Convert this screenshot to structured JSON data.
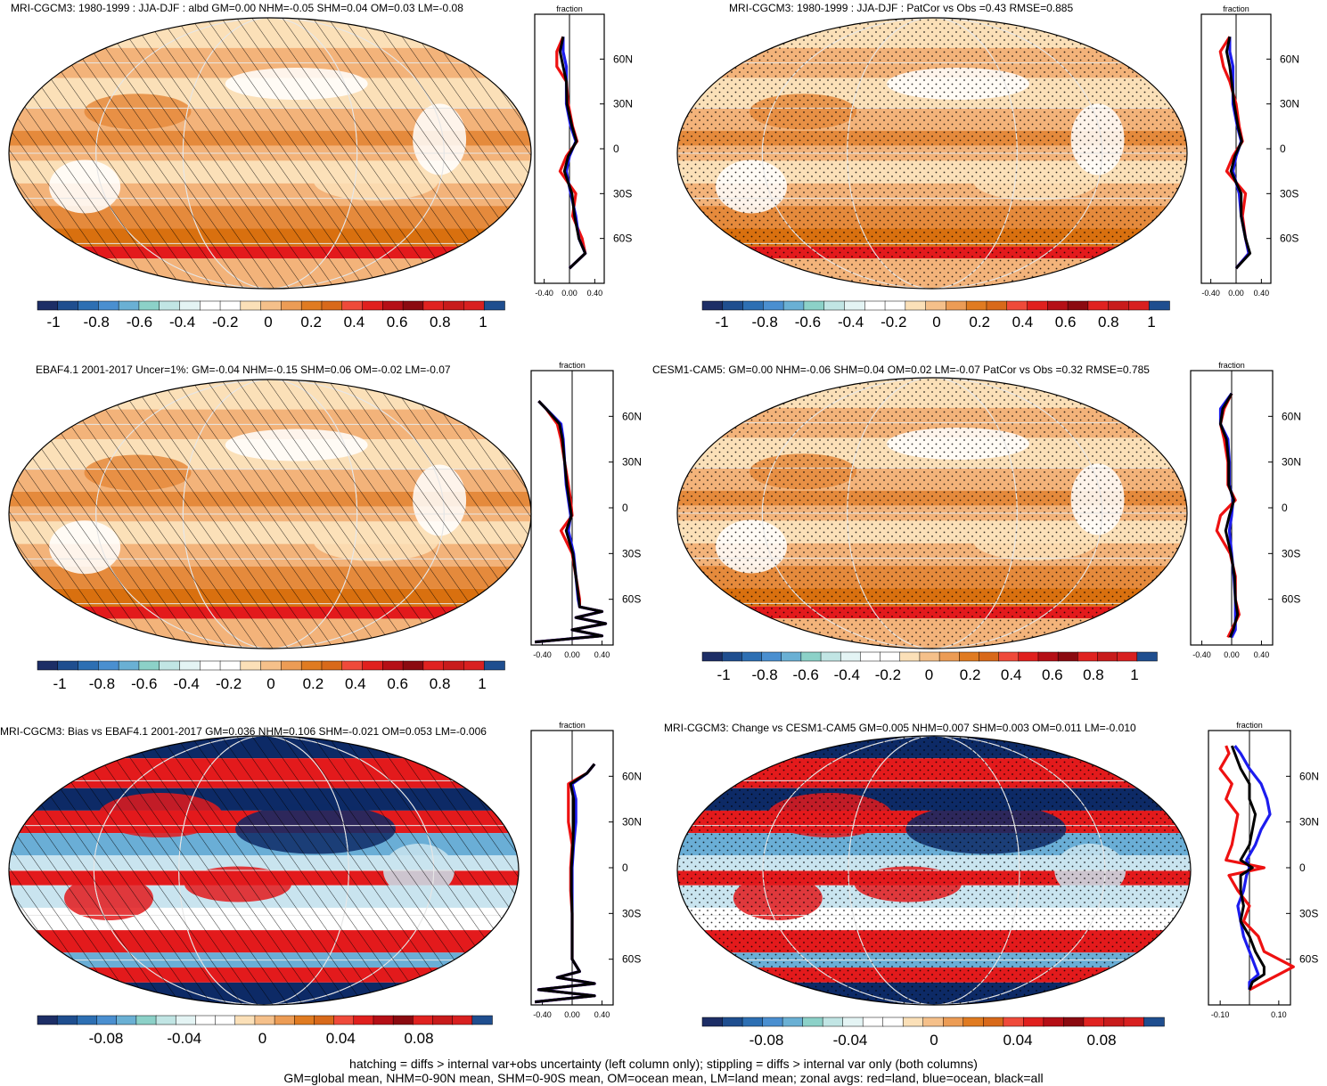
{
  "colors": {
    "dark_blue": "#0d2a66",
    "blue": "#1f5fa8",
    "light_blue": "#6aaed6",
    "pale_blue": "#c9e4ef",
    "white": "#ffffff",
    "pale_orange": "#fbe0b8",
    "light_orange": "#f3b37a",
    "orange": "#e58a3c",
    "dark_orange": "#d9700f",
    "red": "#e31a1c",
    "dark_red": "#b30000",
    "line_red": "#ee1111",
    "line_blue": "#1c1cee",
    "line_black": "#000000"
  },
  "colorbar": {
    "colors": [
      "#1d2e66",
      "#1f4e8f",
      "#2d6fb3",
      "#4a8fd0",
      "#6ab0d4",
      "#8cd1c8",
      "#c1e5e4",
      "#e4f4f4",
      "#ffffff",
      "#ffffff",
      "#fbe0b8",
      "#f5c08a",
      "#ec9c55",
      "#e07b21",
      "#d8691a",
      "#ef4a3a",
      "#e0201e",
      "#b50f16",
      "#8b0a10",
      "#e02220",
      "#c81b1b",
      "#d82020",
      "#1f4e8f"
    ],
    "labels_main": [
      "-1",
      "-0.8",
      "-0.6",
      "-0.4",
      "-0.2",
      "0",
      "0.2",
      "0.4",
      "0.6",
      "0.8",
      "1"
    ],
    "labels_diff": [
      "-0.08",
      "-0.04",
      "0",
      "0.04",
      "0.08"
    ]
  },
  "profile_axis": {
    "unit": "fraction",
    "lat_ticks": [
      "60N",
      "30N",
      "0",
      "30S",
      "60S"
    ],
    "x_ticks_main": [
      "-0.40",
      "0.00",
      "0.40"
    ],
    "x_ticks_change": [
      "-0.10",
      "0.10"
    ]
  },
  "panels": [
    {
      "id": "p1",
      "title": "MRI-CGCM3: 1980-1999 : JJA-DJF : albd GM=0.00 NHM=-0.05 SHM=0.04 OM=0.03 LM=-0.08",
      "overlay": "hatch",
      "style": "orange"
    },
    {
      "id": "p2",
      "title": "MRI-CGCM3: 1980-1999 : JJA-DJF : PatCor vs Obs =0.43 RMSE=0.885",
      "overlay": "stipple",
      "style": "orange"
    },
    {
      "id": "p3",
      "title": "EBAF4.1 2001-2017 Uncer=1%: GM=-0.04 NHM=-0.15 SHM=0.06 OM=-0.02 LM=-0.07",
      "overlay": "hatch",
      "style": "orange"
    },
    {
      "id": "p4",
      "title": "CESM1-CAM5: GM=0.00 NHM=-0.06 SHM=0.04 OM=0.02 LM=-0.07 PatCor vs Obs =0.32 RMSE=0.785",
      "overlay": "stipple",
      "style": "orange"
    },
    {
      "id": "p5",
      "title": "MRI-CGCM3: Bias vs EBAF4.1 2001-2017 GM=0.036 NHM=0.106 SHM=-0.021 OM=0.053 LM=-0.006",
      "overlay": "hatch",
      "style": "diff"
    },
    {
      "id": "p6",
      "title": "MRI-CGCM3: Change vs CESM1-CAM5 GM=0.005 NHM=0.007 SHM=0.003 OM=0.011 LM=-0.010",
      "overlay": "stipple",
      "style": "diff"
    }
  ],
  "chart_data": [
    {
      "type": "line",
      "title": "MRI-CGCM3: 1980-1999 : JJA-DJF : albd GM=0.00 NHM=-0.05 SHM=0.04 OM=0.03 LM=-0.08",
      "xlabel": "fraction",
      "xlim": [
        -0.55,
        0.55
      ],
      "ylim": [
        -90,
        90
      ],
      "lat": [
        -80,
        -70,
        -60,
        -45,
        -30,
        -15,
        -5,
        5,
        15,
        30,
        45,
        55,
        65,
        75
      ],
      "series": [
        {
          "name": "land",
          "color": "red",
          "values": [
            0.0,
            0.25,
            0.2,
            0.05,
            0.1,
            -0.15,
            -0.05,
            0.12,
            0.05,
            -0.02,
            -0.05,
            -0.2,
            -0.2,
            -0.1
          ]
        },
        {
          "name": "ocean",
          "color": "blue",
          "values": [
            0.0,
            0.25,
            0.15,
            0.1,
            0.02,
            -0.05,
            0.0,
            0.1,
            0.02,
            -0.05,
            -0.05,
            -0.05,
            -0.1,
            -0.1
          ]
        },
        {
          "name": "all",
          "color": "black",
          "values": [
            0.0,
            0.25,
            0.15,
            0.08,
            0.04,
            -0.08,
            -0.02,
            0.11,
            0.04,
            -0.04,
            -0.05,
            -0.1,
            -0.15,
            -0.1
          ]
        }
      ]
    },
    {
      "type": "line",
      "title": "MRI-CGCM3: 1980-1999 : JJA-DJF : PatCor vs Obs =0.43 RMSE=0.885",
      "xlabel": "fraction",
      "xlim": [
        -0.55,
        0.55
      ],
      "ylim": [
        -90,
        90
      ],
      "lat": [
        -80,
        -70,
        -60,
        -45,
        -30,
        -15,
        -5,
        5,
        15,
        30,
        45,
        55,
        65,
        75
      ],
      "series": [
        {
          "name": "land",
          "color": "red",
          "values": [
            0.0,
            0.2,
            0.15,
            0.1,
            0.15,
            -0.15,
            -0.05,
            0.1,
            0.05,
            0.0,
            -0.1,
            -0.2,
            -0.25,
            -0.1
          ]
        },
        {
          "name": "ocean",
          "color": "blue",
          "values": [
            0.0,
            0.2,
            0.15,
            0.08,
            0.05,
            -0.05,
            0.0,
            0.08,
            0.02,
            -0.05,
            -0.05,
            -0.05,
            -0.1,
            -0.1
          ]
        },
        {
          "name": "all",
          "color": "black",
          "values": [
            0.0,
            0.22,
            0.15,
            0.08,
            0.08,
            -0.08,
            -0.02,
            0.09,
            0.03,
            -0.03,
            -0.07,
            -0.1,
            -0.15,
            -0.1
          ]
        }
      ]
    },
    {
      "type": "line",
      "title": "EBAF4.1 2001-2017 Uncer=1%: GM=-0.04 NHM=-0.15 SHM=0.06 OM=-0.02 LM=-0.07",
      "xlabel": "fraction",
      "xlim": [
        -0.55,
        0.55
      ],
      "ylim": [
        -90,
        90
      ],
      "lat": [
        -88,
        -84,
        -80,
        -76,
        -72,
        -68,
        -65,
        -60,
        -45,
        -30,
        -15,
        -5,
        5,
        15,
        30,
        45,
        55,
        65,
        70
      ],
      "series": [
        {
          "name": "land",
          "color": "red",
          "values": [
            -0.5,
            0.4,
            0.0,
            0.45,
            0.05,
            0.4,
            0.1,
            0.1,
            0.05,
            0.0,
            -0.15,
            0.0,
            -0.02,
            -0.05,
            -0.1,
            -0.15,
            -0.2,
            -0.35,
            -0.45
          ]
        },
        {
          "name": "ocean",
          "color": "blue",
          "values": [
            -0.5,
            0.4,
            0.0,
            0.45,
            0.05,
            0.4,
            0.1,
            0.08,
            0.05,
            0.02,
            -0.05,
            -0.02,
            -0.05,
            -0.08,
            -0.1,
            -0.12,
            -0.15,
            -0.35,
            -0.45
          ]
        },
        {
          "name": "all",
          "color": "black",
          "values": [
            -0.5,
            0.4,
            0.0,
            0.45,
            0.05,
            0.4,
            0.1,
            0.09,
            0.05,
            0.01,
            -0.08,
            -0.01,
            -0.04,
            -0.07,
            -0.1,
            -0.13,
            -0.17,
            -0.35,
            -0.45
          ]
        }
      ]
    },
    {
      "type": "line",
      "title": "CESM1-CAM5: GM=0.00 NHM=-0.06 SHM=0.04 OM=0.02 LM=-0.07 PatCor vs Obs =0.32 RMSE=0.785",
      "xlabel": "fraction",
      "xlim": [
        -0.55,
        0.55
      ],
      "ylim": [
        -90,
        90
      ],
      "lat": [
        -85,
        -80,
        -70,
        -60,
        -45,
        -30,
        -15,
        -5,
        5,
        15,
        30,
        45,
        55,
        65,
        75
      ],
      "series": [
        {
          "name": "land",
          "color": "red",
          "values": [
            -0.05,
            0.0,
            0.1,
            0.05,
            0.05,
            -0.02,
            -0.2,
            -0.15,
            0.05,
            -0.05,
            -0.05,
            -0.1,
            -0.15,
            -0.1,
            0.0
          ]
        },
        {
          "name": "ocean",
          "color": "blue",
          "values": [
            0.0,
            0.05,
            0.05,
            0.05,
            0.03,
            0.0,
            -0.03,
            0.0,
            0.02,
            -0.03,
            -0.03,
            -0.05,
            -0.15,
            -0.15,
            0.0
          ]
        },
        {
          "name": "all",
          "color": "black",
          "values": [
            -0.02,
            0.02,
            0.08,
            0.05,
            0.04,
            -0.01,
            -0.08,
            -0.03,
            0.03,
            -0.04,
            -0.04,
            -0.07,
            -0.15,
            -0.12,
            0.0
          ]
        }
      ]
    },
    {
      "type": "line",
      "title": "MRI-CGCM3: Bias vs EBAF4.1 2001-2017 GM=0.036 NHM=0.106 SHM=-0.021 OM=0.053 LM=-0.006",
      "xlabel": "fraction",
      "xlim": [
        -0.55,
        0.55
      ],
      "ylim": [
        -90,
        90
      ],
      "lat": [
        -88,
        -84,
        -80,
        -76,
        -72,
        -68,
        -60,
        -45,
        -30,
        -15,
        0,
        15,
        30,
        45,
        55,
        62,
        68
      ],
      "series": [
        {
          "name": "land",
          "color": "red",
          "values": [
            -0.5,
            0.3,
            -0.45,
            0.3,
            -0.2,
            0.1,
            0.0,
            0.0,
            0.0,
            -0.02,
            -0.02,
            0.0,
            -0.05,
            -0.05,
            -0.05,
            0.2,
            0.3
          ]
        },
        {
          "name": "ocean",
          "color": "blue",
          "values": [
            -0.5,
            0.3,
            -0.45,
            0.3,
            -0.2,
            0.1,
            0.0,
            0.0,
            0.0,
            0.0,
            0.0,
            0.02,
            0.05,
            0.05,
            0.0,
            0.2,
            0.3
          ]
        },
        {
          "name": "all",
          "color": "black",
          "values": [
            -0.5,
            0.3,
            -0.45,
            0.3,
            -0.2,
            0.1,
            0.0,
            0.0,
            0.0,
            -0.01,
            -0.01,
            0.01,
            0.02,
            0.02,
            -0.02,
            0.2,
            0.3
          ]
        }
      ]
    },
    {
      "type": "line",
      "title": "MRI-CGCM3: Change vs CESM1-CAM5 GM=0.005 NHM=0.007 SHM=0.003 OM=0.011 LM=-0.010",
      "xlabel": "fraction",
      "xlim": [
        -0.14,
        0.14
      ],
      "ylim": [
        -90,
        90
      ],
      "lat": [
        -80,
        -75,
        -70,
        -65,
        -55,
        -45,
        -35,
        -25,
        -15,
        -5,
        0,
        5,
        15,
        25,
        35,
        45,
        55,
        65,
        75,
        80
      ],
      "series": [
        {
          "name": "land",
          "color": "red",
          "values": [
            0.0,
            0.05,
            0.1,
            0.15,
            0.05,
            0.03,
            -0.02,
            0.0,
            -0.04,
            -0.07,
            0.05,
            -0.08,
            -0.06,
            -0.05,
            -0.04,
            -0.08,
            -0.06,
            -0.1,
            -0.07,
            -0.08
          ]
        },
        {
          "name": "ocean",
          "color": "blue",
          "values": [
            0.0,
            0.0,
            0.03,
            0.02,
            0.0,
            -0.02,
            -0.03,
            -0.04,
            -0.02,
            -0.01,
            0.0,
            -0.01,
            0.02,
            0.04,
            0.07,
            0.06,
            0.04,
            0.0,
            -0.03,
            -0.05
          ]
        },
        {
          "name": "all",
          "color": "black",
          "values": [
            0.0,
            0.01,
            0.05,
            0.05,
            0.02,
            0.0,
            -0.03,
            -0.02,
            -0.03,
            -0.03,
            0.01,
            -0.03,
            0.0,
            0.01,
            0.02,
            0.0,
            0.0,
            -0.03,
            -0.05,
            -0.06
          ]
        }
      ]
    }
  ],
  "footer": {
    "line1": "hatching = diffs > internal var+obs uncertainty (left column only); stippling = diffs > internal var only (both columns)",
    "line2": "GM=global mean, NHM=0-90N mean, SHM=0-90S mean, OM=ocean mean, LM=land mean; zonal avgs: red=land, blue=ocean, black=all"
  }
}
